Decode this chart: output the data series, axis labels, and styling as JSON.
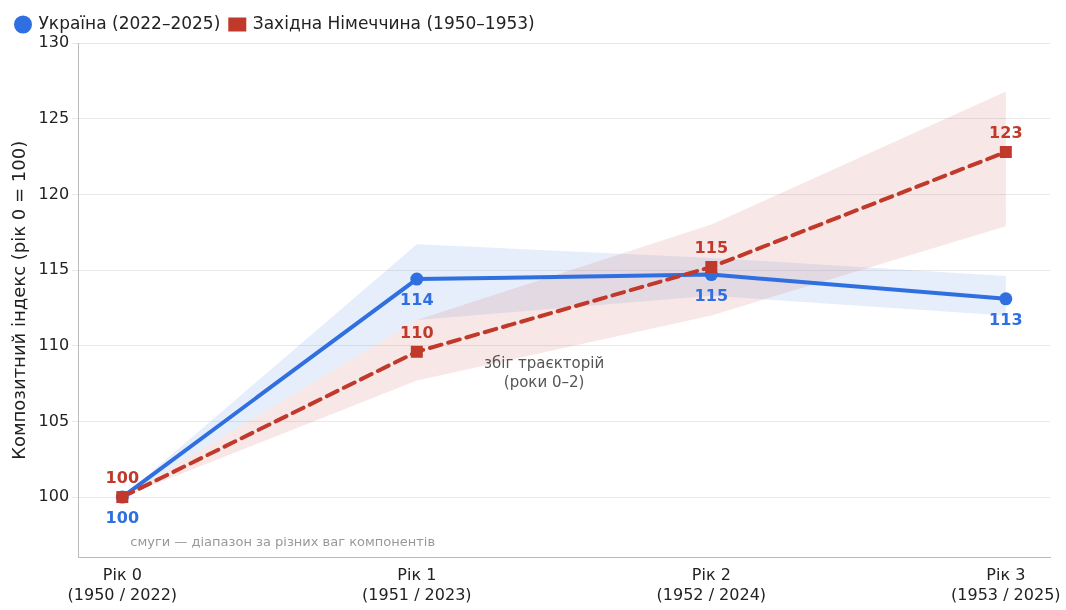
{
  "chart_data": {
    "type": "line",
    "ylabel": "Композитний індекс (рік 0 = 100)",
    "categories": [
      "Рік 0\n(1950 / 2022)",
      "Рік 1\n(1951 / 2023)",
      "Рік 2\n(1952 / 2024)",
      "Рік 3\n(1953 / 2025)"
    ],
    "series": [
      {
        "name": "Україна (2022–2025)",
        "color": "#2f6fe0",
        "marker": "circle",
        "line_style": "solid",
        "values": [
          100,
          114.4,
          114.7,
          113.1
        ],
        "lower": [
          100,
          111.7,
          113.3,
          112.0
        ],
        "upper": [
          100,
          116.7,
          115.8,
          114.6
        ],
        "value_labels": [
          "100",
          "114",
          "115",
          "113"
        ]
      },
      {
        "name": "Західна Німеччина (1950–1953)",
        "color": "#c0392b",
        "marker": "square",
        "line_style": "dashed",
        "values": [
          100,
          109.6,
          115.2,
          122.8
        ],
        "lower": [
          100,
          107.7,
          112.0,
          117.9
        ],
        "upper": [
          100,
          111.7,
          118.0,
          126.8
        ],
        "value_labels": [
          "100",
          "110",
          "115",
          "123"
        ]
      }
    ],
    "ylim": [
      96,
      130
    ],
    "yticks": [
      100,
      105,
      110,
      115,
      120,
      125,
      130
    ],
    "grid": "y",
    "legend": "top left",
    "annotations": [
      "збіг траєкторій\n(роки 0–2)",
      "смуги — діапазон за різних ваг компонентів"
    ]
  }
}
